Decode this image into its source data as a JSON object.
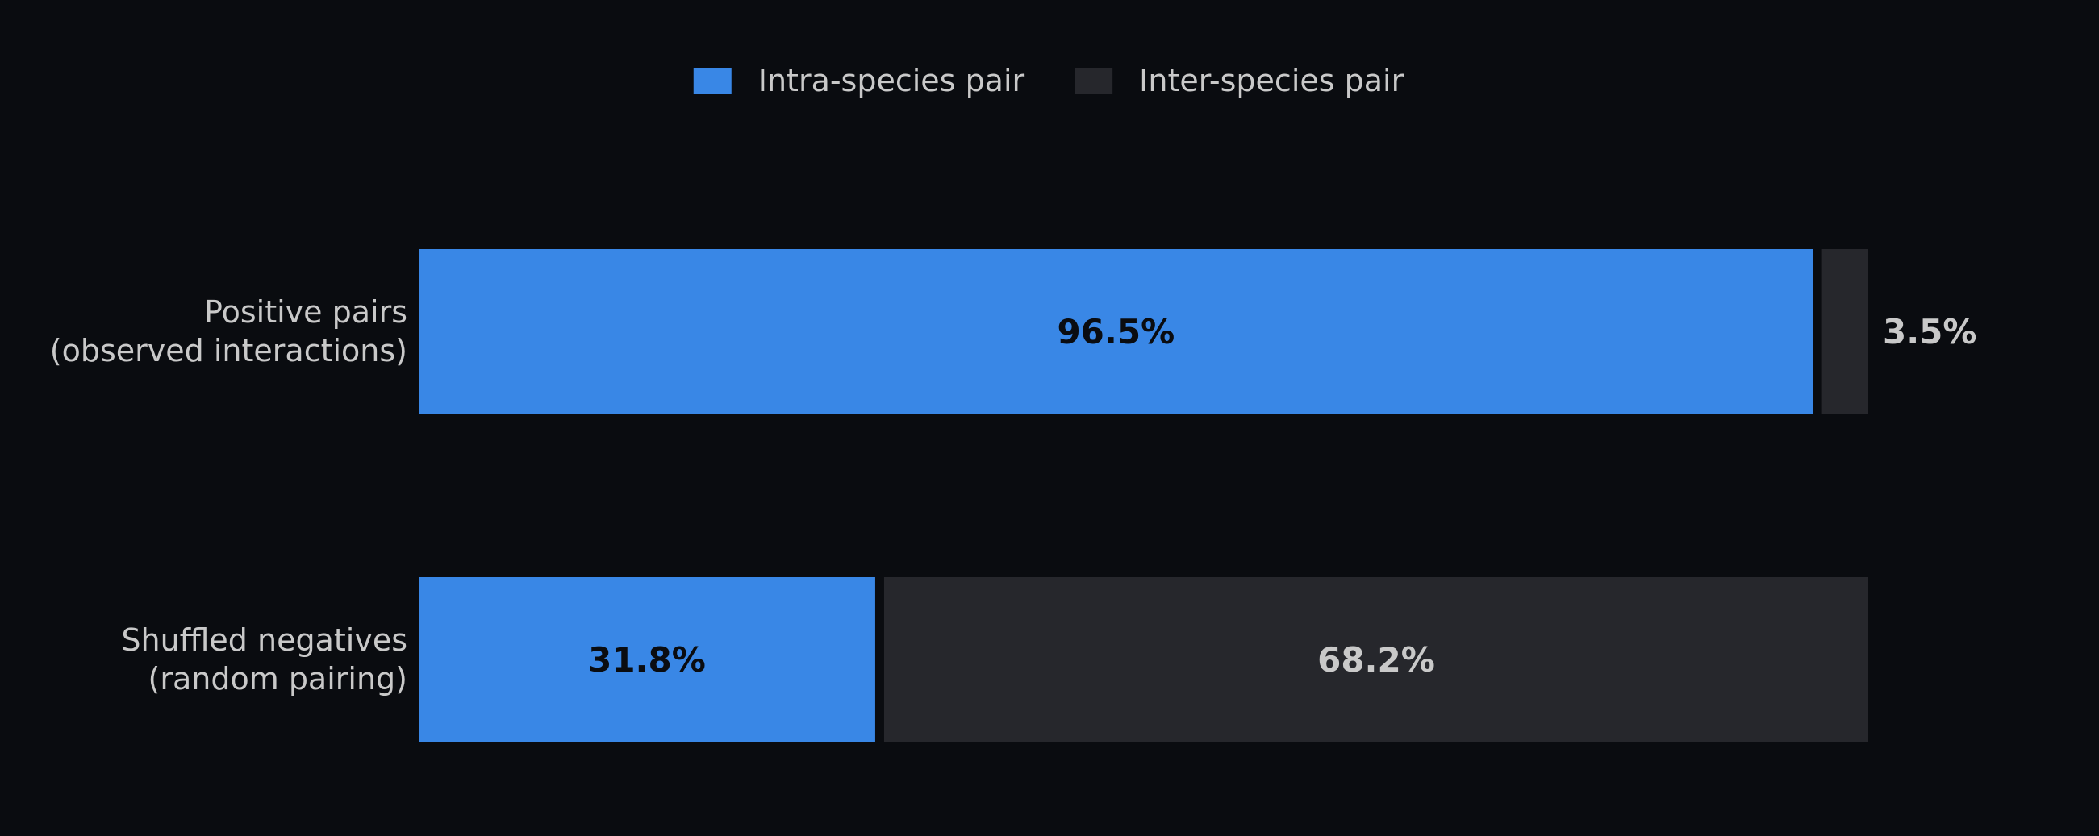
{
  "chart_data": {
    "type": "bar",
    "orientation": "horizontal",
    "stacked": true,
    "normalized_percent": true,
    "categories": [
      [
        "Positive pairs",
        "(observed interactions)"
      ],
      [
        "Shuffled negatives",
        "(random pairing)"
      ]
    ],
    "series": [
      {
        "name": "Intra-species pair",
        "color": "#3987e6",
        "label_color": "#0a0c10",
        "values": [
          96.5,
          31.8
        ]
      },
      {
        "name": "Inter-species pair",
        "color": "#26272c",
        "label_color": "#c9c9c9",
        "values": [
          3.5,
          68.2
        ]
      }
    ],
    "value_labels": [
      [
        "96.5%",
        "31.8%"
      ],
      [
        "3.5%",
        "68.2%"
      ]
    ],
    "xlim": [
      0,
      100
    ],
    "title": "",
    "xlabel": "",
    "ylabel": "",
    "grid": false,
    "legend_position": "top-center",
    "background": "#0a0c10"
  }
}
